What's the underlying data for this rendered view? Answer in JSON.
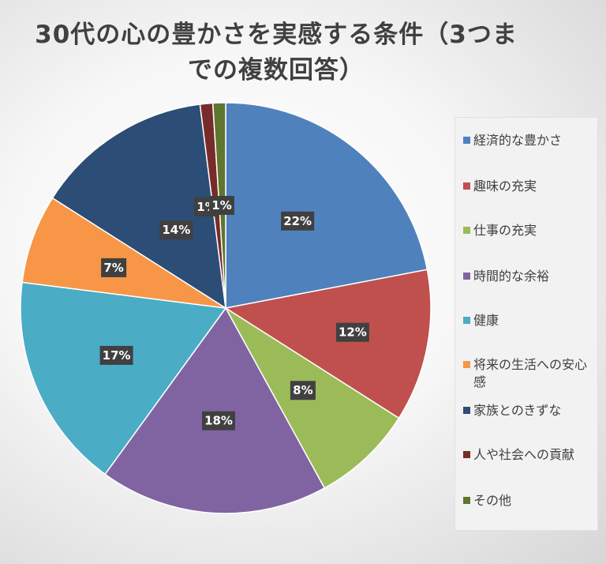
{
  "chart_data": {
    "type": "pie",
    "title": "30代の心の豊かさを実感する条件（3つまでの複数回答）",
    "categories": [
      "経済的な豊かさ",
      "趣味の充実",
      "仕事の充実",
      "時間的な余裕",
      "健康",
      "将来の生活への安心感",
      "家族とのきずな",
      "人や社会への貢献",
      "その他"
    ],
    "values": [
      22,
      12,
      8,
      18,
      17,
      7,
      14,
      1,
      1
    ],
    "data_labels": [
      "22%",
      "12%",
      "8%",
      "18%",
      "17%",
      "7%",
      "14%",
      "1%",
      "1%"
    ],
    "colors": [
      "#4f81bd",
      "#c0504d",
      "#9bbb59",
      "#8064a2",
      "#4bacc6",
      "#f79646",
      "#2c4d75",
      "#772c2a",
      "#5f7530"
    ],
    "legend_position": "right"
  }
}
